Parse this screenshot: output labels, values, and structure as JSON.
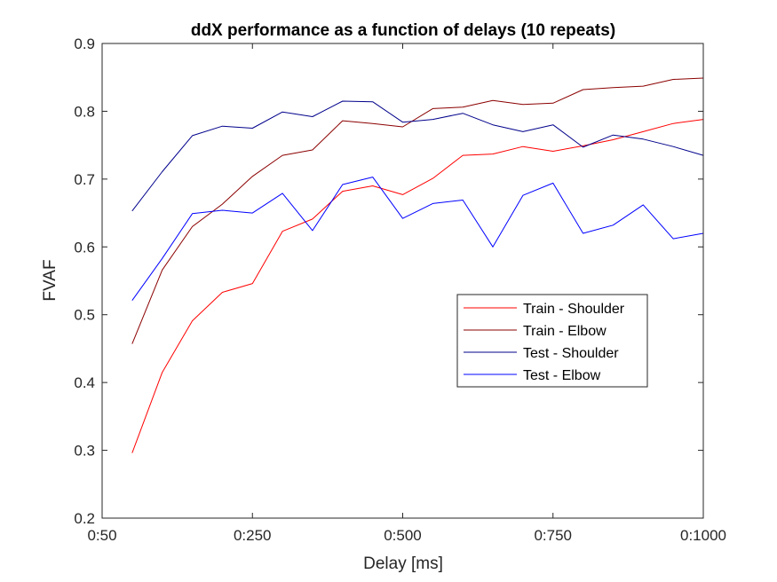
{
  "chart_data": {
    "type": "line",
    "title": "ddX performance as a function of delays (10 repeats)",
    "xlabel": "Delay [ms]",
    "ylabel": "FVAF",
    "xlim": [
      0,
      20
    ],
    "ylim": [
      0.2,
      0.9
    ],
    "grid": false,
    "legend_location": "center-right",
    "x_ticks": [
      {
        "value": 0,
        "label": "0:50"
      },
      {
        "value": 5,
        "label": "0:250"
      },
      {
        "value": 10,
        "label": "0:500"
      },
      {
        "value": 15,
        "label": "0:750"
      },
      {
        "value": 20,
        "label": "0:1000"
      }
    ],
    "y_ticks": [
      {
        "value": 0.2,
        "label": "0.2"
      },
      {
        "value": 0.3,
        "label": "0.3"
      },
      {
        "value": 0.4,
        "label": "0.4"
      },
      {
        "value": 0.5,
        "label": "0.5"
      },
      {
        "value": 0.6,
        "label": "0.6"
      },
      {
        "value": 0.7,
        "label": "0.7"
      },
      {
        "value": 0.8,
        "label": "0.8"
      },
      {
        "value": 0.9,
        "label": "0.9"
      }
    ],
    "x": [
      1,
      2,
      3,
      4,
      5,
      6,
      7,
      8,
      9,
      10,
      11,
      12,
      13,
      14,
      15,
      16,
      17,
      18,
      19,
      20
    ],
    "series": [
      {
        "name": "Train - Shoulder",
        "color": "#ff0000",
        "values": [
          0.296,
          0.415,
          0.491,
          0.533,
          0.546,
          0.623,
          0.641,
          0.682,
          0.69,
          0.677,
          0.701,
          0.735,
          0.737,
          0.748,
          0.741,
          0.749,
          0.758,
          0.77,
          0.782,
          0.788
        ]
      },
      {
        "name": "Train - Elbow",
        "color": "#8b0000",
        "values": [
          0.457,
          0.566,
          0.63,
          0.663,
          0.704,
          0.735,
          0.743,
          0.786,
          0.782,
          0.777,
          0.804,
          0.806,
          0.816,
          0.81,
          0.812,
          0.832,
          0.835,
          0.837,
          0.847,
          0.849
        ]
      },
      {
        "name": "Test - Shoulder",
        "color": "#00008b",
        "values": [
          0.653,
          0.711,
          0.764,
          0.778,
          0.775,
          0.799,
          0.792,
          0.815,
          0.814,
          0.784,
          0.788,
          0.797,
          0.78,
          0.77,
          0.78,
          0.747,
          0.765,
          0.759,
          0.748,
          0.735
        ]
      },
      {
        "name": "Test - Elbow",
        "color": "#0000ff",
        "values": [
          0.521,
          0.583,
          0.649,
          0.654,
          0.65,
          0.679,
          0.624,
          0.692,
          0.703,
          0.642,
          0.664,
          0.669,
          0.6,
          0.676,
          0.694,
          0.62,
          0.632,
          0.662,
          0.612,
          0.62
        ]
      }
    ]
  }
}
